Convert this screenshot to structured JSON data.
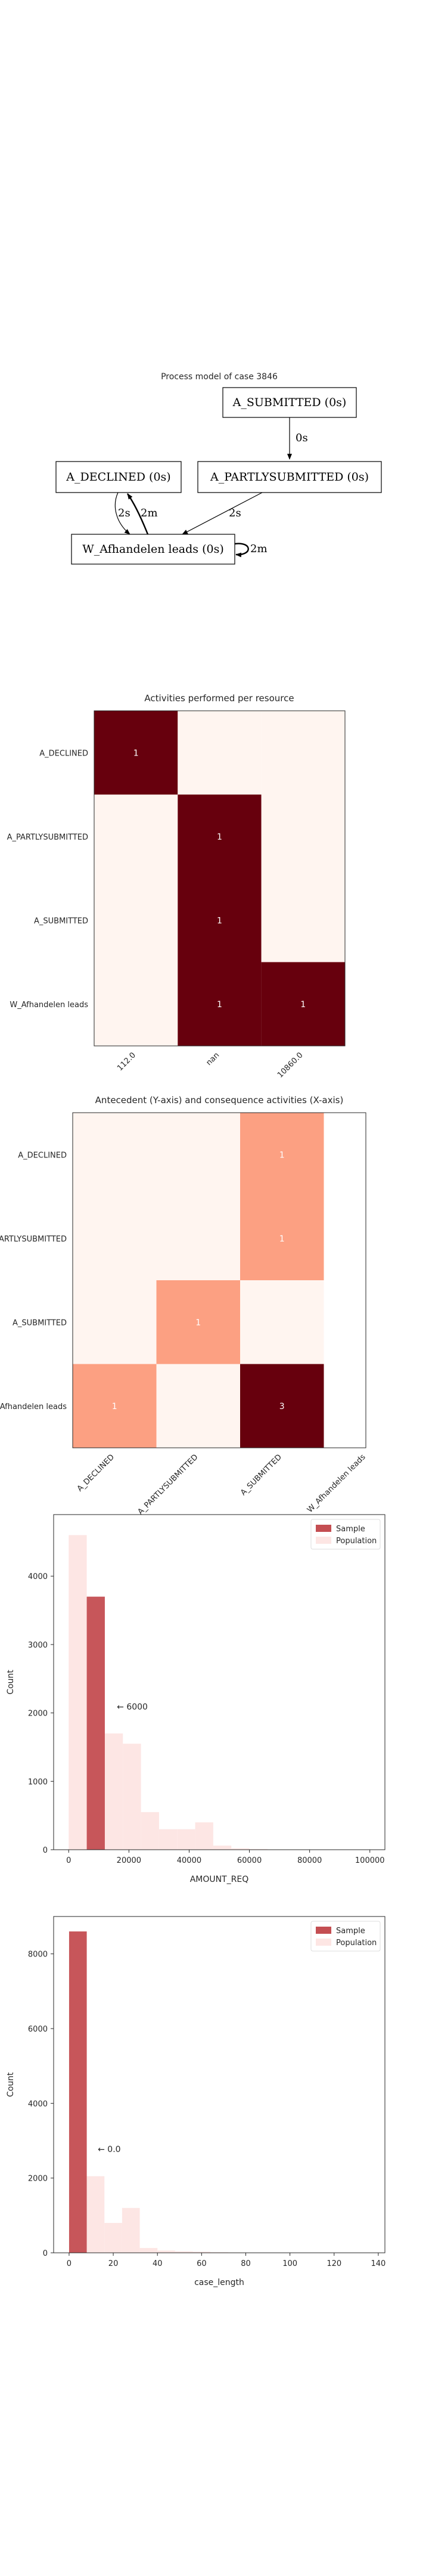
{
  "process_model": {
    "title": "Process model of case 3846",
    "nodes": [
      {
        "id": "submitted",
        "label": "A_SUBMITTED (0s)"
      },
      {
        "id": "declined",
        "label": "A_DECLINED (0s)"
      },
      {
        "id": "partly",
        "label": "A_PARTLYSUBMITTED (0s)"
      },
      {
        "id": "afhandelen",
        "label": "W_Afhandelen leads (0s)"
      }
    ],
    "edges": [
      {
        "from": "submitted",
        "to": "partly",
        "label": "0s"
      },
      {
        "from": "partly",
        "to": "afhandelen",
        "label": "2s"
      },
      {
        "from": "declined",
        "to": "afhandelen",
        "label": "2s"
      },
      {
        "from": "afhandelen",
        "to": "declined",
        "label": "2m"
      },
      {
        "from": "afhandelen",
        "to": "afhandelen",
        "label": "2m"
      }
    ]
  },
  "chart_data": [
    {
      "type": "heatmap",
      "title": "Activities performed per resource",
      "rows": [
        "A_DECLINED",
        "A_PARTLYSUBMITTED",
        "A_SUBMITTED",
        "W_Afhandelen leads"
      ],
      "columns": [
        "112.0",
        "nan",
        "10860.0"
      ],
      "values": [
        [
          1,
          0,
          0
        ],
        [
          0,
          1,
          0
        ],
        [
          0,
          1,
          0
        ],
        [
          0,
          1,
          1
        ]
      ],
      "vmax": 1
    },
    {
      "type": "heatmap",
      "title": "Antecedent (Y-axis) and consequence activities (X-axis)",
      "rows": [
        "A_DECLINED",
        "A_PARTLYSUBMITTED",
        "A_SUBMITTED",
        "W_Afhandelen leads"
      ],
      "columns": [
        "A_DECLINED",
        "A_PARTLYSUBMITTED",
        "A_SUBMITTED",
        "W_Afhandelen leads"
      ],
      "values": [
        [
          0,
          0,
          1,
          null
        ],
        [
          0,
          0,
          1,
          null
        ],
        [
          0,
          1,
          0,
          null
        ],
        [
          1,
          0,
          3,
          null
        ]
      ],
      "vmax": 3
    },
    {
      "type": "bar",
      "xlabel": "AMOUNT_REQ",
      "ylabel": "Count",
      "xlim": [
        -5000,
        105000
      ],
      "ylim": [
        0,
        4900
      ],
      "xticks": [
        0,
        20000,
        40000,
        60000,
        80000,
        100000
      ],
      "yticks": [
        0,
        1000,
        2000,
        3000,
        4000
      ],
      "annotation": "← 6000",
      "annotation_x": 16000,
      "annotation_y": 2050,
      "legend": [
        "Sample",
        "Population"
      ],
      "series": [
        {
          "name": "Population",
          "bin_width": 6000,
          "bins": [
            [
              0,
              4600
            ],
            [
              6000,
              3650
            ],
            [
              12000,
              1700
            ],
            [
              18000,
              1550
            ],
            [
              24000,
              550
            ],
            [
              30000,
              300
            ],
            [
              36000,
              300
            ],
            [
              42000,
              400
            ],
            [
              48000,
              60
            ],
            [
              54000,
              20
            ],
            [
              60000,
              10
            ],
            [
              66000,
              5
            ],
            [
              72000,
              5
            ],
            [
              78000,
              3
            ],
            [
              84000,
              2
            ],
            [
              90000,
              2
            ],
            [
              96000,
              1
            ]
          ]
        },
        {
          "name": "Sample",
          "bin_width": 6000,
          "bins": [
            [
              6000,
              3700
            ]
          ]
        }
      ]
    },
    {
      "type": "bar",
      "xlabel": "case_length",
      "ylabel": "Count",
      "xlim": [
        -7,
        143
      ],
      "ylim": [
        0,
        9000
      ],
      "xticks": [
        0,
        20,
        40,
        60,
        80,
        100,
        120,
        140
      ],
      "yticks": [
        0,
        2000,
        4000,
        6000,
        8000
      ],
      "annotation": "← 0.0",
      "annotation_x": 13,
      "annotation_y": 2700,
      "legend": [
        "Sample",
        "Population"
      ],
      "series": [
        {
          "name": "Population",
          "bin_width": 8,
          "bins": [
            [
              0,
              8600
            ],
            [
              8,
              2050
            ],
            [
              16,
              800
            ],
            [
              24,
              1200
            ],
            [
              32,
              130
            ],
            [
              40,
              60
            ],
            [
              48,
              40
            ],
            [
              56,
              30
            ],
            [
              64,
              15
            ],
            [
              72,
              10
            ],
            [
              80,
              5
            ],
            [
              88,
              4
            ],
            [
              96,
              3
            ],
            [
              104,
              2
            ],
            [
              112,
              1
            ],
            [
              120,
              1
            ],
            [
              128,
              1
            ]
          ]
        },
        {
          "name": "Sample",
          "bin_width": 8,
          "bins": [
            [
              0,
              8600
            ]
          ]
        }
      ]
    }
  ],
  "colors": {
    "zero": "#fff5f0",
    "low": "#fca082",
    "high": "#67000d",
    "sample": "#c44e52",
    "population": "#fde6e4"
  }
}
